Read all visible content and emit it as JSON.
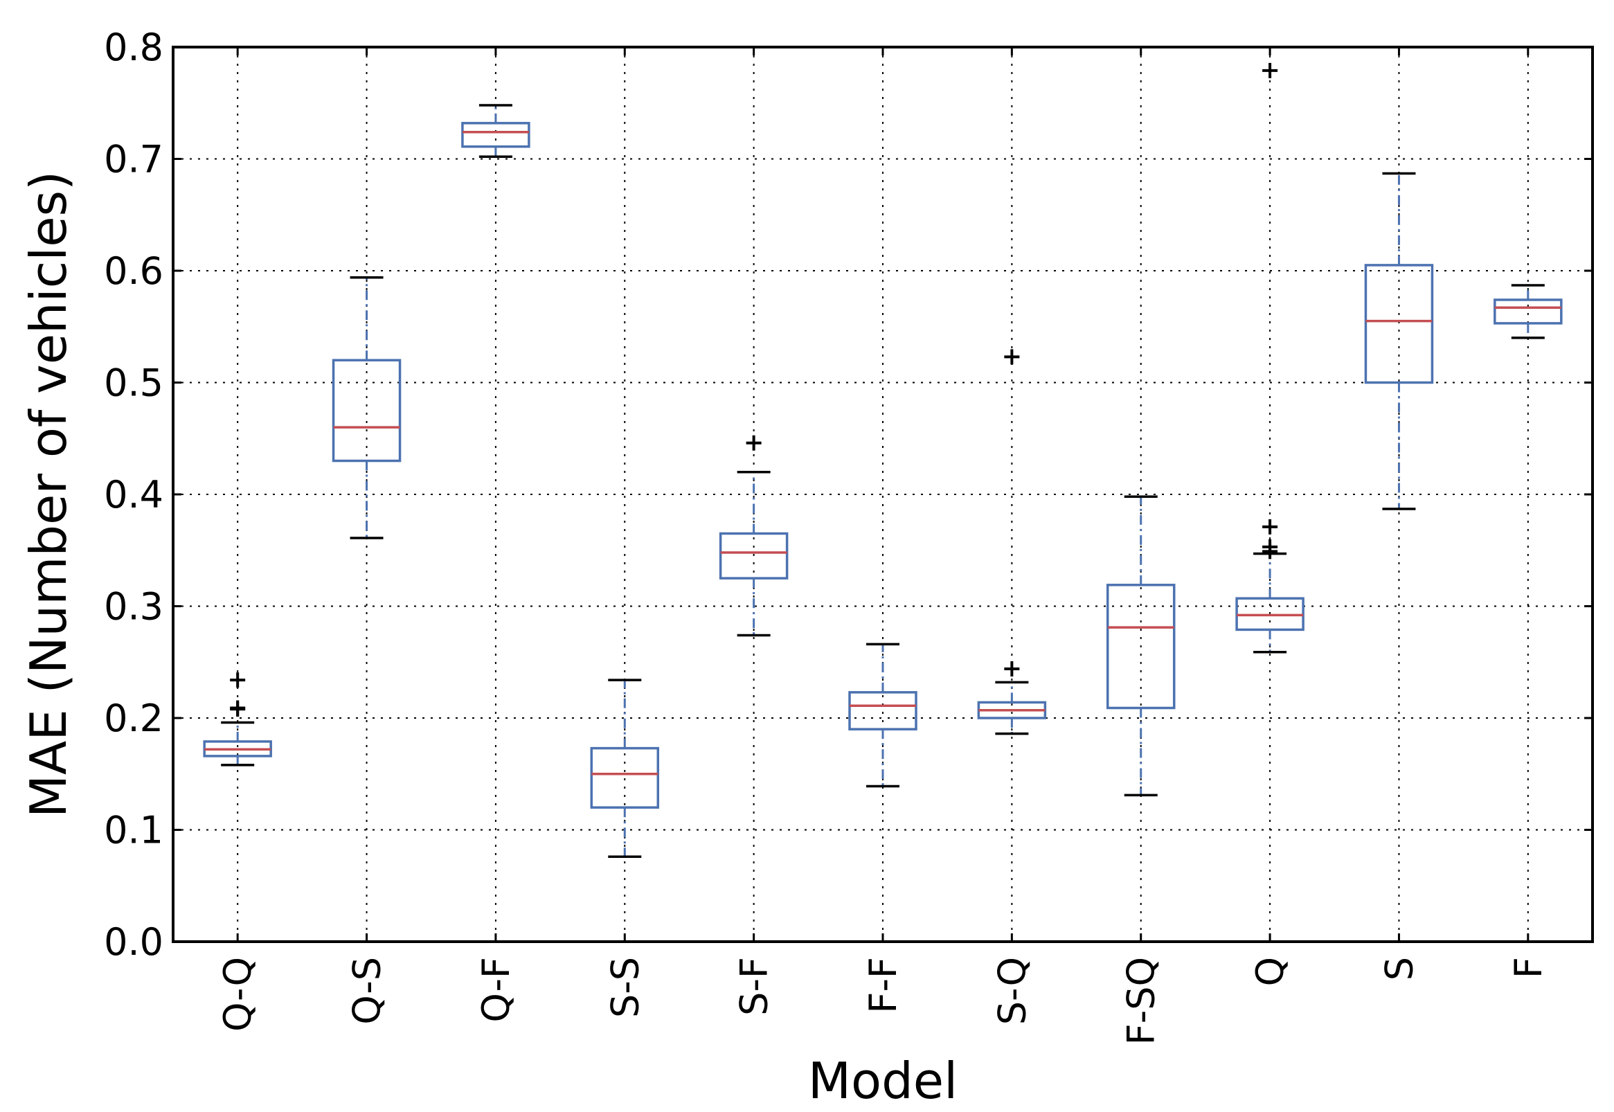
{
  "chart_data": {
    "type": "boxplot",
    "title": "",
    "xlabel": "Model",
    "ylabel": "MAE (Number of vehicles)",
    "ylim": [
      0.0,
      0.8
    ],
    "yticks": [
      "0.0",
      "0.1",
      "0.2",
      "0.3",
      "0.4",
      "0.5",
      "0.6",
      "0.7",
      "0.8"
    ],
    "grid": true,
    "categories": [
      "Q-Q",
      "Q-S",
      "Q-F",
      "S-S",
      "S-F",
      "F-F",
      "S-Q",
      "F-SQ",
      "Q",
      "S",
      "F"
    ],
    "boxes": [
      {
        "name": "Q-Q",
        "whisker_low": 0.158,
        "q1": 0.166,
        "median": 0.172,
        "q3": 0.179,
        "whisker_high": 0.196,
        "outliers": [
          0.208,
          0.209,
          0.234
        ]
      },
      {
        "name": "Q-S",
        "whisker_low": 0.361,
        "q1": 0.43,
        "median": 0.46,
        "q3": 0.52,
        "whisker_high": 0.594,
        "outliers": []
      },
      {
        "name": "Q-F",
        "whisker_low": 0.702,
        "q1": 0.711,
        "median": 0.724,
        "q3": 0.732,
        "whisker_high": 0.748,
        "outliers": []
      },
      {
        "name": "S-S",
        "whisker_low": 0.076,
        "q1": 0.12,
        "median": 0.15,
        "q3": 0.173,
        "whisker_high": 0.234,
        "outliers": []
      },
      {
        "name": "S-F",
        "whisker_low": 0.274,
        "q1": 0.325,
        "median": 0.348,
        "q3": 0.365,
        "whisker_high": 0.42,
        "outliers": [
          0.446
        ]
      },
      {
        "name": "F-F",
        "whisker_low": 0.139,
        "q1": 0.19,
        "median": 0.211,
        "q3": 0.223,
        "whisker_high": 0.266,
        "outliers": []
      },
      {
        "name": "S-Q",
        "whisker_low": 0.186,
        "q1": 0.2,
        "median": 0.207,
        "q3": 0.214,
        "whisker_high": 0.232,
        "outliers": [
          0.244,
          0.523
        ]
      },
      {
        "name": "F-SQ",
        "whisker_low": 0.131,
        "q1": 0.209,
        "median": 0.281,
        "q3": 0.319,
        "whisker_high": 0.398,
        "outliers": []
      },
      {
        "name": "Q",
        "whisker_low": 0.259,
        "q1": 0.279,
        "median": 0.292,
        "q3": 0.307,
        "whisker_high": 0.347,
        "outliers": [
          0.349,
          0.353,
          0.371,
          0.779
        ]
      },
      {
        "name": "S",
        "whisker_low": 0.387,
        "q1": 0.5,
        "median": 0.555,
        "q3": 0.605,
        "whisker_high": 0.687,
        "outliers": []
      },
      {
        "name": "F",
        "whisker_low": 0.54,
        "q1": 0.553,
        "median": 0.567,
        "q3": 0.574,
        "whisker_high": 0.587,
        "outliers": []
      }
    ],
    "colors": {
      "box": "#4c72b0",
      "median": "#c44e52",
      "whisker_cap": "#000000",
      "grid": "#000000"
    }
  }
}
